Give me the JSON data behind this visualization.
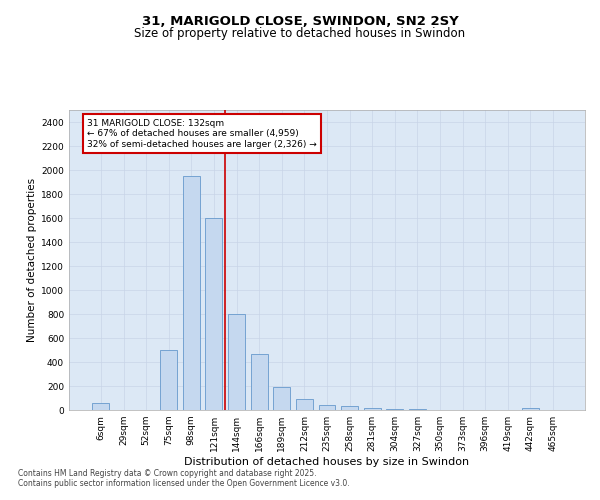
{
  "title": "31, MARIGOLD CLOSE, SWINDON, SN2 2SY",
  "subtitle": "Size of property relative to detached houses in Swindon",
  "xlabel": "Distribution of detached houses by size in Swindon",
  "ylabel": "Number of detached properties",
  "categories": [
    "6sqm",
    "29sqm",
    "52sqm",
    "75sqm",
    "98sqm",
    "121sqm",
    "144sqm",
    "166sqm",
    "189sqm",
    "212sqm",
    "235sqm",
    "258sqm",
    "281sqm",
    "304sqm",
    "327sqm",
    "350sqm",
    "373sqm",
    "396sqm",
    "419sqm",
    "442sqm",
    "465sqm"
  ],
  "values": [
    55,
    0,
    0,
    500,
    1950,
    1600,
    800,
    470,
    190,
    90,
    45,
    30,
    20,
    10,
    5,
    3,
    2,
    1,
    0,
    20,
    0
  ],
  "bar_color": "#c5d8ef",
  "bar_edge_color": "#6699cc",
  "vline_color": "#cc0000",
  "vline_pos": 5.5,
  "annotation_text_line1": "31 MARIGOLD CLOSE: 132sqm",
  "annotation_text_line2": "← 67% of detached houses are smaller (4,959)",
  "annotation_text_line3": "32% of semi-detached houses are larger (2,326) →",
  "annotation_box_color": "#cc0000",
  "ylim": [
    0,
    2500
  ],
  "yticks": [
    0,
    200,
    400,
    600,
    800,
    1000,
    1200,
    1400,
    1600,
    1800,
    2000,
    2200,
    2400
  ],
  "grid_color": "#c8d4e8",
  "background_color": "#dce8f5",
  "footer_line1": "Contains HM Land Registry data © Crown copyright and database right 2025.",
  "footer_line2": "Contains public sector information licensed under the Open Government Licence v3.0.",
  "title_fontsize": 9.5,
  "subtitle_fontsize": 8.5,
  "axis_label_fontsize": 7.5,
  "tick_fontsize": 6.5,
  "annotation_fontsize": 6.5,
  "footer_fontsize": 5.5
}
